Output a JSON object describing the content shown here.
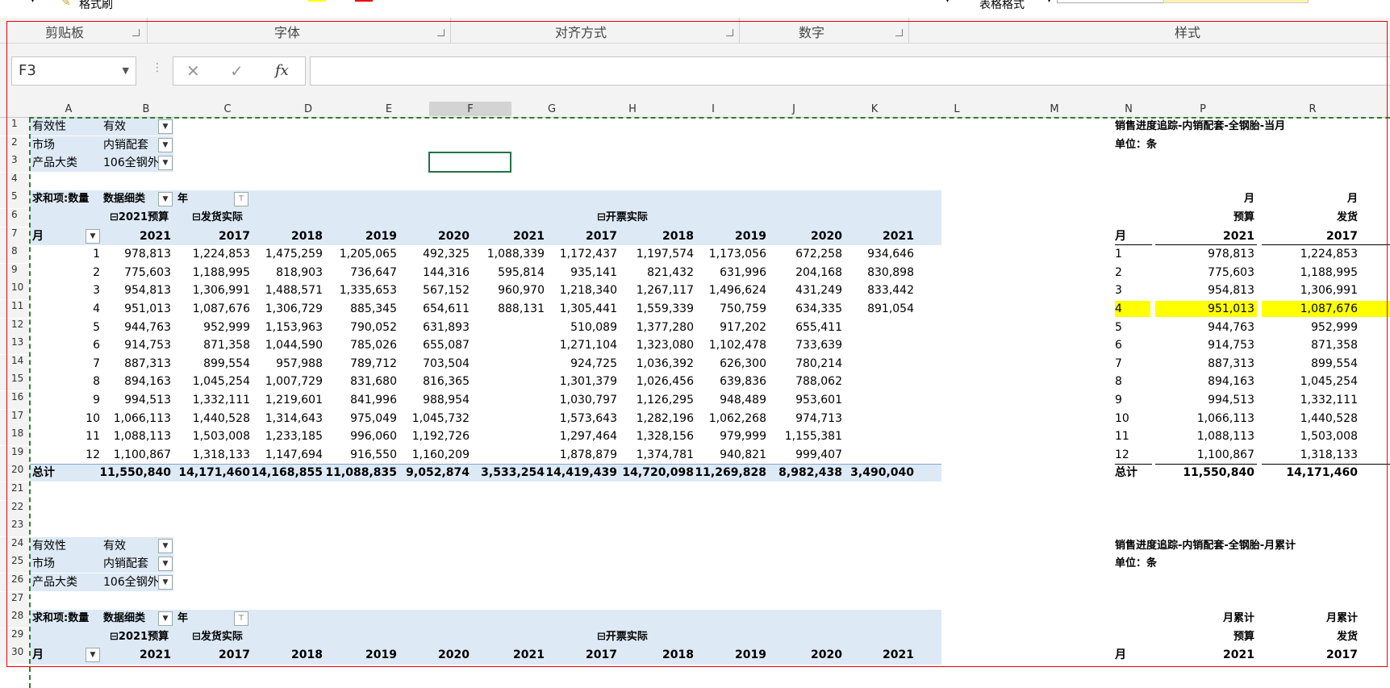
{
  "ribbon": {
    "groups": [
      "剪贴板",
      "字体",
      "对齐方式",
      "数字",
      "样式"
    ],
    "partial_labels": {
      "format_painter": "格式刷",
      "table_format": "表格格式"
    }
  },
  "formula_bar": {
    "name_box": "F3",
    "formula": ""
  },
  "columns": [
    "A",
    "B",
    "C",
    "D",
    "E",
    "F",
    "G",
    "H",
    "I",
    "J",
    "K",
    "L",
    "M",
    "N",
    "P",
    "R"
  ],
  "row_numbers": [
    "1",
    "2",
    "3",
    "4",
    "5",
    "6",
    "7",
    "8",
    "9",
    "10",
    "11",
    "12",
    "13",
    "14",
    "15",
    "16",
    "17",
    "18",
    "19",
    "20",
    "21",
    "22",
    "23",
    "24",
    "25",
    "26",
    "27",
    "28",
    "29",
    "30"
  ],
  "pivot1": {
    "filters": [
      [
        "有效性",
        "有效"
      ],
      [
        "市场",
        "内销配套"
      ],
      [
        "产品大类",
        "106全钢外"
      ]
    ],
    "header_left": "求和项:数量",
    "header_cat": "数据细类",
    "header_year": "年",
    "budget": "2021预算",
    "shipped": "发货实际",
    "invoiced": "开票实际",
    "month_label": "月",
    "years": [
      "2021",
      "2017",
      "2018",
      "2019",
      "2020",
      "2021",
      "2017",
      "2018",
      "2019",
      "2020",
      "2021"
    ],
    "rows": [
      [
        "1",
        "978,813",
        "1,224,853",
        "1,475,259",
        "1,205,065",
        "492,325",
        "1,088,339",
        "1,172,437",
        "1,197,574",
        "1,173,056",
        "672,258",
        "934,646"
      ],
      [
        "2",
        "775,603",
        "1,188,995",
        "818,903",
        "736,647",
        "144,316",
        "595,814",
        "935,141",
        "821,432",
        "631,996",
        "204,168",
        "830,898"
      ],
      [
        "3",
        "954,813",
        "1,306,991",
        "1,488,571",
        "1,335,653",
        "567,152",
        "960,970",
        "1,218,340",
        "1,267,117",
        "1,496,624",
        "431,249",
        "833,442"
      ],
      [
        "4",
        "951,013",
        "1,087,676",
        "1,306,729",
        "885,345",
        "654,611",
        "888,131",
        "1,305,441",
        "1,559,339",
        "750,759",
        "634,335",
        "891,054"
      ],
      [
        "5",
        "944,763",
        "952,999",
        "1,153,963",
        "790,052",
        "631,893",
        "",
        "510,089",
        "1,377,280",
        "917,202",
        "655,411",
        ""
      ],
      [
        "6",
        "914,753",
        "871,358",
        "1,044,590",
        "785,026",
        "655,087",
        "",
        "1,271,104",
        "1,323,080",
        "1,102,478",
        "733,639",
        ""
      ],
      [
        "7",
        "887,313",
        "899,554",
        "957,988",
        "789,712",
        "703,504",
        "",
        "924,725",
        "1,036,392",
        "626,300",
        "780,214",
        ""
      ],
      [
        "8",
        "894,163",
        "1,045,254",
        "1,007,729",
        "831,680",
        "816,365",
        "",
        "1,301,379",
        "1,026,456",
        "639,836",
        "788,062",
        ""
      ],
      [
        "9",
        "994,513",
        "1,332,111",
        "1,219,601",
        "841,996",
        "988,954",
        "",
        "1,030,797",
        "1,126,295",
        "948,489",
        "953,601",
        ""
      ],
      [
        "10",
        "1,066,113",
        "1,440,528",
        "1,314,643",
        "975,049",
        "1,045,732",
        "",
        "1,573,643",
        "1,282,196",
        "1,062,268",
        "974,713",
        ""
      ],
      [
        "11",
        "1,088,113",
        "1,503,008",
        "1,233,185",
        "996,060",
        "1,192,726",
        "",
        "1,297,464",
        "1,328,156",
        "979,999",
        "1,155,381",
        ""
      ],
      [
        "12",
        "1,100,867",
        "1,318,133",
        "1,147,694",
        "916,550",
        "1,160,209",
        "",
        "1,878,879",
        "1,374,781",
        "940,821",
        "999,407",
        ""
      ]
    ],
    "total": [
      "总计",
      "11,550,840",
      "14,171,460",
      "14,168,855",
      "11,088,835",
      "9,052,874",
      "3,533,254",
      "14,419,439",
      "14,720,098",
      "11,269,828",
      "8,982,438",
      "3,490,040"
    ]
  },
  "report1": {
    "title": "销售进度追踪-内销配套-全钢胎-当月",
    "unit": "单位：条",
    "h1": [
      "月",
      "月"
    ],
    "h2": [
      "预算",
      "发货"
    ],
    "h3": [
      "月",
      "2021",
      "2017"
    ],
    "rows": [
      [
        "1",
        "978,813",
        "1,224,853"
      ],
      [
        "2",
        "775,603",
        "1,188,995"
      ],
      [
        "3",
        "954,813",
        "1,306,991"
      ],
      [
        "4",
        "951,013",
        "1,087,676"
      ],
      [
        "5",
        "944,763",
        "952,999"
      ],
      [
        "6",
        "914,753",
        "871,358"
      ],
      [
        "7",
        "887,313",
        "899,554"
      ],
      [
        "8",
        "894,163",
        "1,045,254"
      ],
      [
        "9",
        "994,513",
        "1,332,111"
      ],
      [
        "10",
        "1,066,113",
        "1,440,528"
      ],
      [
        "11",
        "1,088,113",
        "1,503,008"
      ],
      [
        "12",
        "1,100,867",
        "1,318,133"
      ]
    ],
    "total": [
      "总计",
      "11,550,840",
      "14,171,460"
    ]
  },
  "pivot2": {
    "filters": [
      [
        "有效性",
        "有效"
      ],
      [
        "市场",
        "内销配套"
      ],
      [
        "产品大类",
        "106全钢外"
      ]
    ],
    "header_left": "求和项:数量",
    "header_cat": "数据细类",
    "header_year": "年",
    "budget": "2021预算",
    "shipped": "发货实际",
    "invoiced": "开票实际",
    "month_label": "月",
    "years": [
      "2021",
      "2017",
      "2018",
      "2019",
      "2020",
      "2021",
      "2017",
      "2018",
      "2019",
      "2020",
      "2021"
    ]
  },
  "report2": {
    "title": "销售进度追踪-内销配套-全钢胎-月累计",
    "unit": "单位：条",
    "h1": [
      "月累计",
      "月累计"
    ],
    "h2": [
      "预算",
      "发货"
    ],
    "h3": [
      "月",
      "2021",
      "2017"
    ]
  },
  "colors": {
    "pivot_band": "#dde9f5",
    "highlight": "#ffff00",
    "selection": "#217346",
    "red_frame": "#ee0000"
  }
}
